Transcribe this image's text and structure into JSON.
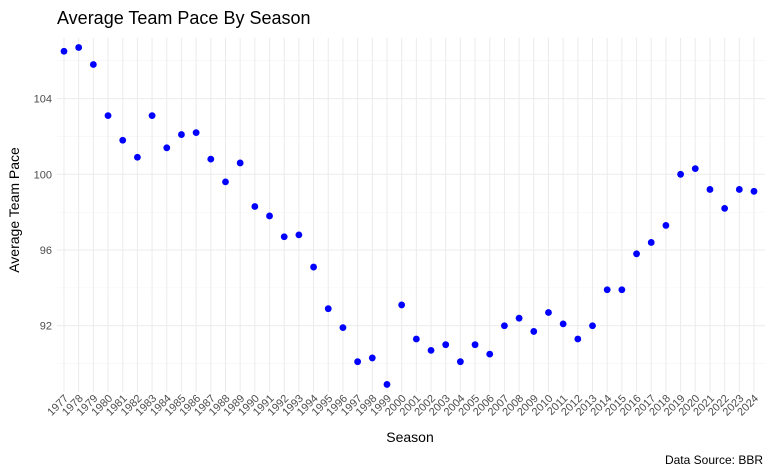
{
  "chart_data": {
    "type": "scatter",
    "title": "Average Team Pace By Season",
    "xlabel": "Season",
    "ylabel": "Average Team Pace",
    "caption": "Data Source: BBR",
    "ylim": [
      88.5,
      107.2
    ],
    "yticks": [
      92,
      96,
      100,
      104
    ],
    "grid": true,
    "point_color": "#0000ff",
    "x": [
      "1977",
      "1978",
      "1979",
      "1980",
      "1981",
      "1982",
      "1983",
      "1984",
      "1985",
      "1986",
      "1987",
      "1988",
      "1989",
      "1990",
      "1991",
      "1992",
      "1993",
      "1994",
      "1995",
      "1996",
      "1997",
      "1998",
      "1999",
      "2000",
      "2001",
      "2002",
      "2003",
      "2004",
      "2005",
      "2006",
      "2007",
      "2008",
      "2009",
      "2010",
      "2011",
      "2012",
      "2013",
      "2014",
      "2015",
      "2016",
      "2017",
      "2018",
      "2019",
      "2020",
      "2021",
      "2022",
      "2023",
      "2024"
    ],
    "y": [
      106.5,
      106.7,
      105.8,
      103.1,
      101.8,
      100.9,
      103.1,
      101.4,
      102.1,
      102.2,
      100.8,
      99.6,
      100.6,
      98.3,
      97.8,
      96.7,
      96.8,
      95.1,
      92.9,
      91.9,
      90.1,
      90.3,
      88.9,
      93.1,
      91.3,
      90.7,
      91.0,
      90.1,
      91.0,
      90.5,
      92.0,
      92.4,
      91.7,
      92.7,
      92.1,
      91.3,
      92.0,
      93.9,
      93.9,
      95.8,
      96.4,
      97.3,
      100.0,
      100.3,
      99.2,
      98.2,
      99.2,
      99.1
    ]
  }
}
